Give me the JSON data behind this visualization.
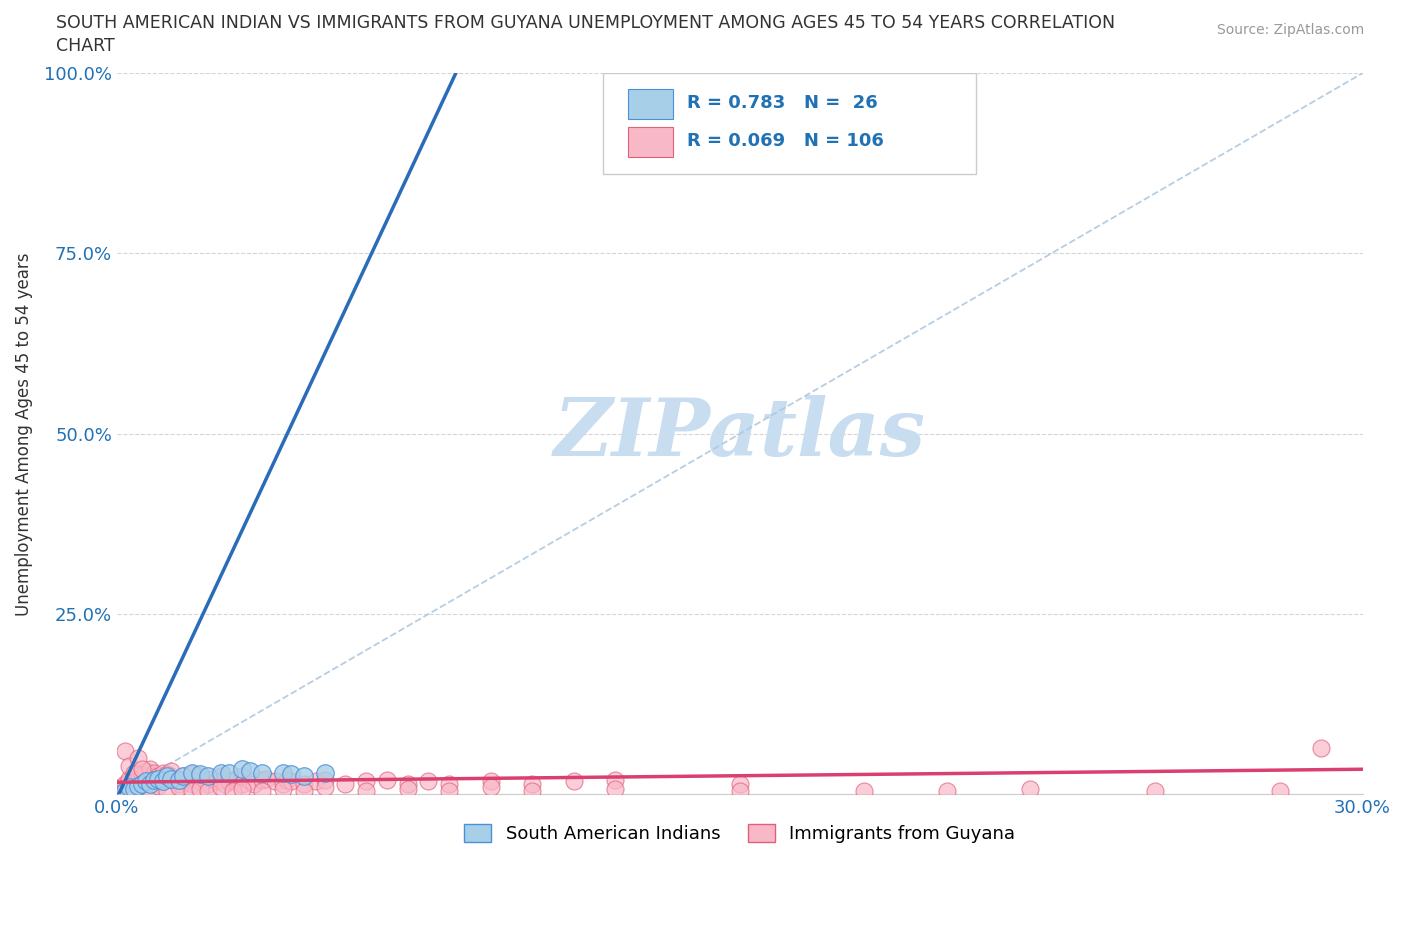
{
  "title_line1": "SOUTH AMERICAN INDIAN VS IMMIGRANTS FROM GUYANA UNEMPLOYMENT AMONG AGES 45 TO 54 YEARS CORRELATION",
  "title_line2": "CHART",
  "source": "Source: ZipAtlas.com",
  "ylabel": "Unemployment Among Ages 45 to 54 years",
  "xlim": [
    0.0,
    0.3
  ],
  "ylim": [
    0.0,
    1.0
  ],
  "blue_color": "#a8cfe8",
  "blue_edge_color": "#4a90d9",
  "pink_color": "#f9b8c8",
  "pink_edge_color": "#e0607a",
  "blue_line_color": "#2b6cb8",
  "pink_line_color": "#d94070",
  "diagonal_color": "#b0c8e0",
  "R1": 0.783,
  "N1": 26,
  "R2": 0.069,
  "N2": 106,
  "legend_label1": "South American Indians",
  "legend_label2": "Immigrants from Guyana",
  "watermark": "ZIPatlas",
  "watermark_color": "#c8ddf0",
  "blue_trend_x0": 0.0,
  "blue_trend_y0": -0.005,
  "blue_trend_x1": 0.054,
  "blue_trend_y1": 0.66,
  "pink_trend_x0": 0.0,
  "pink_trend_y0": 0.017,
  "pink_trend_x1": 0.3,
  "pink_trend_y1": 0.035,
  "blue_x": [
    0.002,
    0.003,
    0.004,
    0.005,
    0.006,
    0.007,
    0.008,
    0.009,
    0.01,
    0.011,
    0.012,
    0.013,
    0.015,
    0.016,
    0.018,
    0.02,
    0.022,
    0.025,
    0.027,
    0.03,
    0.032,
    0.035,
    0.04,
    0.042,
    0.045,
    0.05
  ],
  "blue_y": [
    0.005,
    0.01,
    0.008,
    0.012,
    0.015,
    0.018,
    0.015,
    0.02,
    0.022,
    0.018,
    0.025,
    0.022,
    0.02,
    0.025,
    0.03,
    0.028,
    0.025,
    0.03,
    0.03,
    0.035,
    0.032,
    0.03,
    0.03,
    0.028,
    0.025,
    0.03
  ],
  "pink_x": [
    0.001,
    0.001,
    0.002,
    0.002,
    0.003,
    0.003,
    0.003,
    0.004,
    0.004,
    0.004,
    0.005,
    0.005,
    0.005,
    0.006,
    0.006,
    0.007,
    0.007,
    0.008,
    0.008,
    0.009,
    0.009,
    0.01,
    0.01,
    0.011,
    0.011,
    0.012,
    0.012,
    0.013,
    0.013,
    0.014,
    0.015,
    0.015,
    0.016,
    0.016,
    0.017,
    0.018,
    0.018,
    0.019,
    0.02,
    0.02,
    0.021,
    0.022,
    0.023,
    0.024,
    0.025,
    0.025,
    0.026,
    0.027,
    0.028,
    0.029,
    0.03,
    0.03,
    0.032,
    0.033,
    0.035,
    0.036,
    0.038,
    0.04,
    0.041,
    0.042,
    0.045,
    0.048,
    0.05,
    0.055,
    0.06,
    0.065,
    0.07,
    0.075,
    0.08,
    0.09,
    0.1,
    0.11,
    0.12,
    0.15,
    0.002,
    0.003,
    0.004,
    0.005,
    0.006,
    0.008,
    0.01,
    0.012,
    0.015,
    0.018,
    0.02,
    0.022,
    0.025,
    0.028,
    0.03,
    0.035,
    0.04,
    0.045,
    0.05,
    0.06,
    0.07,
    0.08,
    0.09,
    0.1,
    0.12,
    0.15,
    0.18,
    0.2,
    0.22,
    0.25,
    0.28,
    0.29
  ],
  "pink_y": [
    0.005,
    0.01,
    0.008,
    0.015,
    0.012,
    0.018,
    0.022,
    0.015,
    0.02,
    0.025,
    0.018,
    0.025,
    0.03,
    0.022,
    0.028,
    0.025,
    0.032,
    0.02,
    0.035,
    0.025,
    0.03,
    0.018,
    0.025,
    0.02,
    0.03,
    0.022,
    0.028,
    0.025,
    0.032,
    0.018,
    0.015,
    0.022,
    0.018,
    0.025,
    0.02,
    0.015,
    0.028,
    0.02,
    0.018,
    0.025,
    0.02,
    0.015,
    0.022,
    0.018,
    0.02,
    0.025,
    0.015,
    0.018,
    0.02,
    0.022,
    0.015,
    0.025,
    0.018,
    0.015,
    0.02,
    0.022,
    0.018,
    0.015,
    0.02,
    0.018,
    0.015,
    0.018,
    0.02,
    0.015,
    0.018,
    0.02,
    0.015,
    0.018,
    0.015,
    0.018,
    0.015,
    0.018,
    0.02,
    0.015,
    0.06,
    0.04,
    0.03,
    0.05,
    0.035,
    0.008,
    0.012,
    0.005,
    0.01,
    0.005,
    0.008,
    0.005,
    0.01,
    0.005,
    0.008,
    0.005,
    0.008,
    0.005,
    0.01,
    0.005,
    0.008,
    0.005,
    0.01,
    0.005,
    0.008,
    0.005,
    0.005,
    0.005,
    0.008,
    0.005,
    0.005,
    0.065
  ]
}
